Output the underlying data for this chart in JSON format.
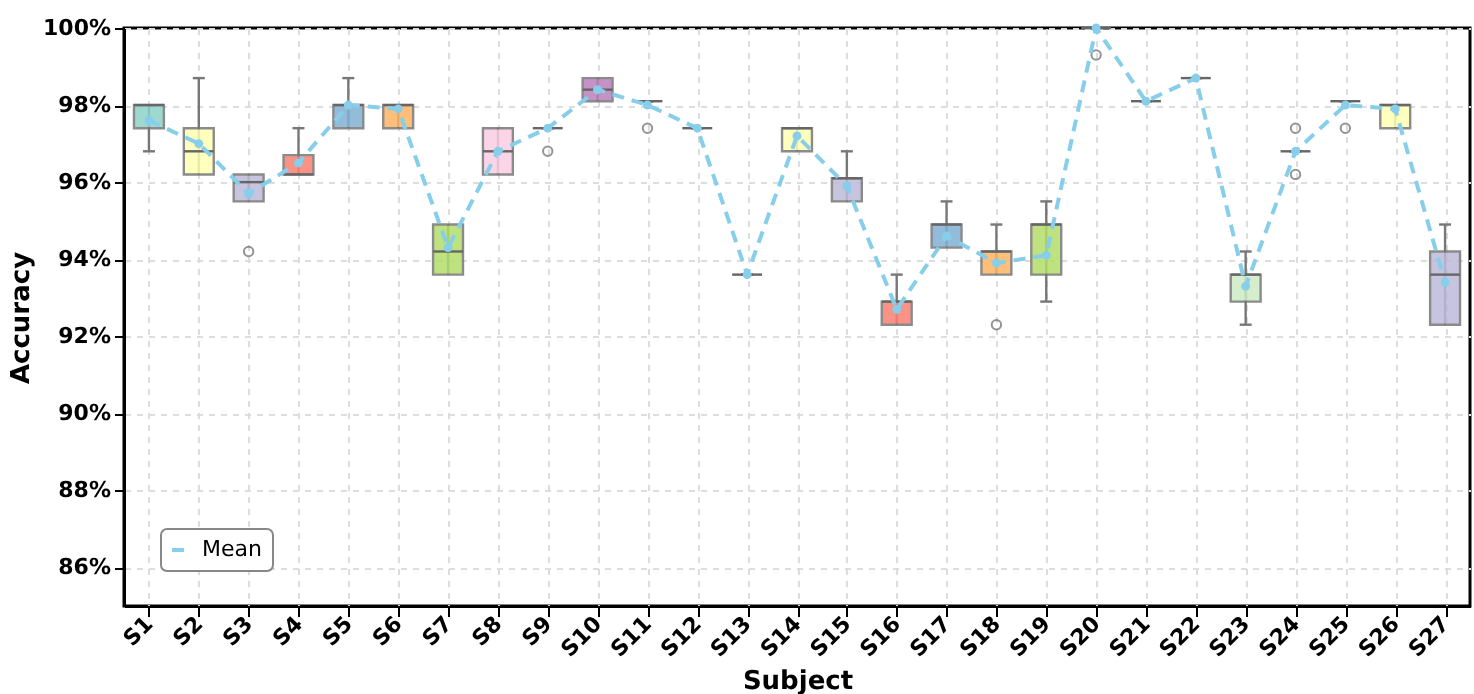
{
  "chart_data": {
    "type": "box",
    "xlabel": "Subject",
    "ylabel": "Accuracy",
    "categories": [
      "S1",
      "S2",
      "S3",
      "S4",
      "S5",
      "S6",
      "S7",
      "S8",
      "S9",
      "S10",
      "S11",
      "S12",
      "S13",
      "S14",
      "S15",
      "S16",
      "S17",
      "S18",
      "S19",
      "S20",
      "S21",
      "S22",
      "S23",
      "S24",
      "S25",
      "S26",
      "S27"
    ],
    "boxes": [
      {
        "low": 96.8,
        "q1": 97.4,
        "median": 98.0,
        "q3": 98.0,
        "high": 98.0
      },
      {
        "low": 96.2,
        "q1": 96.2,
        "median": 96.8,
        "q3": 97.4,
        "high": 98.7
      },
      {
        "low": 95.5,
        "q1": 95.5,
        "median": 96.0,
        "q3": 96.2,
        "high": 96.2,
        "outliers": [
          94.2
        ]
      },
      {
        "low": 96.2,
        "q1": 96.2,
        "median": 96.2,
        "q3": 96.7,
        "high": 97.4
      },
      {
        "low": 97.4,
        "q1": 97.4,
        "median": 98.0,
        "q3": 98.0,
        "high": 98.7
      },
      {
        "low": 97.4,
        "q1": 97.4,
        "median": 98.0,
        "q3": 98.0,
        "high": 98.0
      },
      {
        "low": 93.6,
        "q1": 93.6,
        "median": 94.2,
        "q3": 94.9,
        "high": 94.9
      },
      {
        "low": 96.2,
        "q1": 96.2,
        "median": 96.8,
        "q3": 97.4,
        "high": 97.4
      },
      {
        "low": 97.4,
        "q1": 97.4,
        "median": 97.4,
        "q3": 97.4,
        "high": 97.4,
        "outliers": [
          96.8
        ]
      },
      {
        "low": 98.1,
        "q1": 98.1,
        "median": 98.4,
        "q3": 98.7,
        "high": 98.7
      },
      {
        "low": 98.1,
        "q1": 98.1,
        "median": 98.1,
        "q3": 98.1,
        "high": 98.1,
        "outliers": [
          97.4
        ]
      },
      {
        "low": 97.4,
        "q1": 97.4,
        "median": 97.4,
        "q3": 97.4,
        "high": 97.4
      },
      {
        "low": 93.6,
        "q1": 93.6,
        "median": 93.6,
        "q3": 93.6,
        "high": 93.6
      },
      {
        "low": 96.8,
        "q1": 96.8,
        "median": 97.4,
        "q3": 97.4,
        "high": 97.4
      },
      {
        "low": 95.5,
        "q1": 95.5,
        "median": 96.1,
        "q3": 96.1,
        "high": 96.8
      },
      {
        "low": 92.3,
        "q1": 92.3,
        "median": 92.9,
        "q3": 92.9,
        "high": 93.6
      },
      {
        "low": 94.3,
        "q1": 94.3,
        "median": 94.9,
        "q3": 94.9,
        "high": 95.5
      },
      {
        "low": 93.6,
        "q1": 93.6,
        "median": 94.2,
        "q3": 94.2,
        "high": 94.9,
        "outliers": [
          92.3
        ]
      },
      {
        "low": 92.9,
        "q1": 93.6,
        "median": 94.9,
        "q3": 94.9,
        "high": 95.5
      },
      {
        "low": 100,
        "q1": 100,
        "median": 100,
        "q3": 100,
        "high": 100,
        "outliers": [
          99.3
        ]
      },
      {
        "low": 98.1,
        "q1": 98.1,
        "median": 98.1,
        "q3": 98.1,
        "high": 98.1
      },
      {
        "low": 98.7,
        "q1": 98.7,
        "median": 98.7,
        "q3": 98.7,
        "high": 98.7
      },
      {
        "low": 92.3,
        "q1": 92.9,
        "median": 93.6,
        "q3": 93.6,
        "high": 94.2
      },
      {
        "low": 96.8,
        "q1": 96.8,
        "median": 96.8,
        "q3": 96.8,
        "high": 96.8,
        "outliers": [
          97.4,
          96.2
        ]
      },
      {
        "low": 98.1,
        "q1": 98.1,
        "median": 98.1,
        "q3": 98.1,
        "high": 98.1,
        "outliers": [
          97.4
        ]
      },
      {
        "low": 97.4,
        "q1": 97.4,
        "median": 98.0,
        "q3": 98.0,
        "high": 98.0
      },
      {
        "low": 92.3,
        "q1": 92.3,
        "median": 93.6,
        "q3": 94.2,
        "high": 94.9
      }
    ],
    "colors": [
      "#8dd3c7",
      "#ffffb3",
      "#bebada",
      "#fb8072",
      "#80b1d3",
      "#fdb462",
      "#b3de69",
      "#fccde5",
      null,
      "#bc80bd",
      null,
      null,
      null,
      "#ffffb3",
      "#bebada",
      "#fb8072",
      "#80b1d3",
      "#fdb462",
      "#b3de69",
      null,
      null,
      null,
      "#ccebc5",
      null,
      null,
      "#ffffb3",
      "#bebada"
    ],
    "series": [
      {
        "name": "Mean",
        "type": "line",
        "color": "#87ceeb",
        "values": [
          97.6,
          97.0,
          95.7,
          96.5,
          98.0,
          97.9,
          94.3,
          96.8,
          97.4,
          98.4,
          98.0,
          97.4,
          93.6,
          97.2,
          95.9,
          92.7,
          94.6,
          93.9,
          94.1,
          100,
          98.1,
          98.7,
          93.3,
          96.8,
          98.0,
          97.9,
          93.4
        ]
      }
    ],
    "marker": "circle",
    "line_style": "dashed",
    "grid": true,
    "legend": "bottom left",
    "ylim": [
      85,
      100
    ],
    "yticks": [
      {
        "value": 86,
        "label": "86%"
      },
      {
        "value": 88,
        "label": "88%"
      },
      {
        "value": 90,
        "label": "90%"
      },
      {
        "value": 92,
        "label": "92%"
      },
      {
        "value": 94,
        "label": "94%"
      },
      {
        "value": 96,
        "label": "96%"
      },
      {
        "value": 98,
        "label": "98%"
      },
      {
        "value": 100,
        "label": "100%"
      }
    ]
  }
}
